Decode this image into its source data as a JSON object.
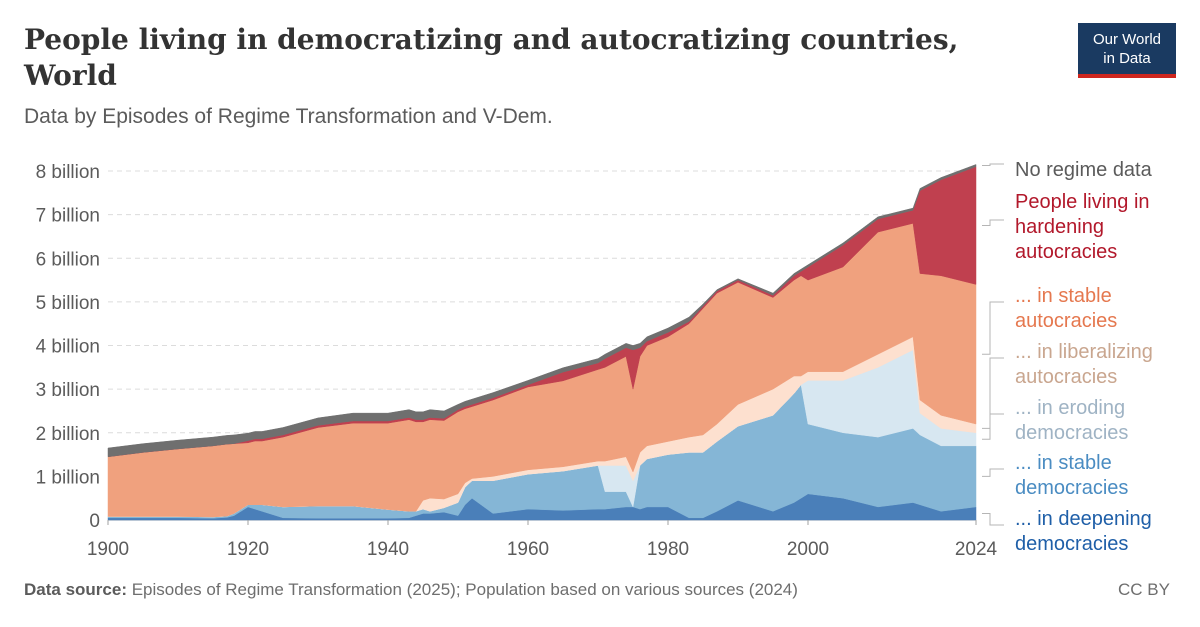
{
  "header": {
    "title": "People living in democratizing and autocratizing countries, World",
    "subtitle": "Data by Episodes of Regime Transformation and V-Dem.",
    "logo_line1": "Our World",
    "logo_line2": "in Data"
  },
  "footer": {
    "source_label": "Data source:",
    "source_text": "Episodes of Regime Transformation (2025); Population based on various sources (2024)",
    "license": "CC BY"
  },
  "colors": {
    "deepening_democracies": "#4a7fb9",
    "stable_democracies": "#85b6d6",
    "eroding_democracies": "#d7e7f1",
    "liberalizing_autocracies": "#fde0cf",
    "stable_autocracies": "#f0a17e",
    "hardening_autocracies": "#c0404f",
    "no_regime_data": "#6f6f6f"
  },
  "chart_data": {
    "type": "area",
    "stacked": true,
    "title": "People living in democratizing and autocratizing countries, World",
    "ylim": [
      0,
      8
    ],
    "yticks": [
      {
        "value": 0,
        "label": "0"
      },
      {
        "value": 1,
        "label": "1 billion"
      },
      {
        "value": 2,
        "label": "2 billion"
      },
      {
        "value": 3,
        "label": "3 billion"
      },
      {
        "value": 4,
        "label": "4 billion"
      },
      {
        "value": 5,
        "label": "5 billion"
      },
      {
        "value": 6,
        "label": "6 billion"
      },
      {
        "value": 7,
        "label": "7 billion"
      },
      {
        "value": 8,
        "label": "8 billion"
      }
    ],
    "xlim": [
      1900,
      2024
    ],
    "xticks": [
      1900,
      1920,
      1940,
      1960,
      1980,
      2000,
      2024
    ],
    "grid": true,
    "legend_position": "right",
    "x": [
      1900,
      1905,
      1910,
      1915,
      1917,
      1918,
      1920,
      1921,
      1922,
      1925,
      1930,
      1935,
      1940,
      1943,
      1944,
      1945,
      1946,
      1948,
      1950,
      1951,
      1952,
      1955,
      1960,
      1965,
      1970,
      1971,
      1974,
      1975,
      1976,
      1977,
      1980,
      1983,
      1985,
      1987,
      1990,
      1995,
      1998,
      1999,
      2000,
      2005,
      2010,
      2015,
      2016,
      2019,
      2024
    ],
    "series": [
      {
        "name": "... in deepening democracies",
        "key": "deepening_democracies",
        "values": [
          0.05,
          0.05,
          0.05,
          0.04,
          0.06,
          0.1,
          0.3,
          0.25,
          0.2,
          0.05,
          0.04,
          0.04,
          0.04,
          0.05,
          0.1,
          0.15,
          0.15,
          0.18,
          0.1,
          0.35,
          0.5,
          0.15,
          0.25,
          0.22,
          0.25,
          0.25,
          0.3,
          0.3,
          0.25,
          0.3,
          0.3,
          0.05,
          0.05,
          0.2,
          0.45,
          0.2,
          0.4,
          0.5,
          0.6,
          0.5,
          0.3,
          0.4,
          0.35,
          0.2,
          0.3
        ]
      },
      {
        "name": "... in stable democracies",
        "key": "stable_democracies",
        "values": [
          0.03,
          0.03,
          0.03,
          0.03,
          0.03,
          0.05,
          0.05,
          0.1,
          0.15,
          0.25,
          0.28,
          0.28,
          0.2,
          0.15,
          0.1,
          0.1,
          0.05,
          0.1,
          0.3,
          0.4,
          0.4,
          0.75,
          0.8,
          0.9,
          1.0,
          0.4,
          0.35,
          0.0,
          1.0,
          1.1,
          1.2,
          1.5,
          1.5,
          1.6,
          1.7,
          2.2,
          2.5,
          2.6,
          1.6,
          1.5,
          1.6,
          1.7,
          1.6,
          1.5,
          1.4
        ]
      },
      {
        "name": "... in eroding democracies",
        "key": "eroding_democracies",
        "values": [
          0,
          0,
          0,
          0,
          0,
          0,
          0,
          0,
          0,
          0,
          0,
          0,
          0,
          0,
          0,
          0,
          0,
          0,
          0,
          0,
          0,
          0,
          0,
          0,
          0,
          0.6,
          0.6,
          0.6,
          0,
          0,
          0,
          0,
          0,
          0,
          0,
          0,
          0,
          0,
          1.0,
          1.2,
          1.6,
          1.8,
          0.5,
          0.4,
          0.3
        ]
      },
      {
        "name": "... in liberalizing autocracies",
        "key": "liberalizing_autocracies",
        "values": [
          0,
          0,
          0,
          0,
          0,
          0,
          0,
          0,
          0,
          0,
          0,
          0,
          0,
          0,
          0,
          0.2,
          0.3,
          0.2,
          0.2,
          0.1,
          0.05,
          0.1,
          0.1,
          0.1,
          0.1,
          0.1,
          0.2,
          0.2,
          0.3,
          0.3,
          0.3,
          0.35,
          0.4,
          0.4,
          0.5,
          0.6,
          0.4,
          0.2,
          0.2,
          0.2,
          0.3,
          0.3,
          0.3,
          0.3,
          0.2
        ]
      },
      {
        "name": "... in stable autocracies",
        "key": "stable_autocracies",
        "values": [
          1.37,
          1.47,
          1.55,
          1.63,
          1.65,
          1.6,
          1.42,
          1.46,
          1.46,
          1.6,
          1.8,
          1.9,
          1.98,
          2.1,
          2.05,
          1.8,
          1.8,
          1.8,
          1.88,
          1.7,
          1.65,
          1.75,
          1.9,
          1.97,
          2.1,
          2.15,
          2.3,
          1.9,
          2.2,
          2.3,
          2.4,
          2.6,
          2.9,
          3.0,
          2.8,
          2.1,
          2.2,
          2.3,
          2.1,
          2.4,
          2.8,
          2.6,
          2.9,
          3.2,
          3.2
        ]
      },
      {
        "name": "People living in hardening autocracies",
        "key": "hardening_autocracies",
        "values": [
          0,
          0,
          0,
          0,
          0,
          0,
          0.05,
          0.05,
          0.05,
          0.05,
          0.05,
          0.05,
          0.05,
          0.05,
          0.05,
          0.05,
          0.05,
          0.05,
          0.05,
          0.05,
          0.05,
          0.05,
          0.05,
          0.2,
          0.15,
          0.2,
          0.2,
          0.9,
          0.2,
          0.1,
          0.1,
          0.05,
          0.05,
          0.05,
          0.05,
          0.05,
          0.1,
          0.1,
          0.3,
          0.5,
          0.3,
          0.3,
          1.9,
          2.2,
          2.7
        ]
      },
      {
        "name": "No regime data",
        "key": "no_regime_data",
        "values": [
          0.2,
          0.2,
          0.2,
          0.2,
          0.2,
          0.2,
          0.17,
          0.17,
          0.17,
          0.17,
          0.17,
          0.18,
          0.18,
          0.18,
          0.18,
          0.18,
          0.18,
          0.17,
          0.12,
          0.12,
          0.12,
          0.12,
          0.1,
          0.1,
          0.1,
          0.1,
          0.1,
          0.1,
          0.1,
          0.1,
          0.1,
          0.1,
          0.05,
          0.03,
          0.03,
          0.05,
          0.05,
          0.05,
          0.05,
          0.05,
          0.05,
          0.05,
          0.05,
          0.05,
          0.05
        ]
      }
    ],
    "labels": [
      {
        "key": "no_regime_data",
        "lines": [
          "No regime data"
        ]
      },
      {
        "key": "hardening_autocracies",
        "lines": [
          "People living in",
          "hardening",
          "autocracies"
        ]
      },
      {
        "key": "stable_autocracies",
        "lines": [
          "... in stable",
          "autocracies"
        ]
      },
      {
        "key": "liberalizing_autocracies",
        "lines": [
          "... in liberalizing",
          "autocracies"
        ]
      },
      {
        "key": "eroding_democracies",
        "lines": [
          "... in eroding",
          "democracies"
        ]
      },
      {
        "key": "stable_democracies",
        "lines": [
          "... in stable",
          "democracies"
        ]
      },
      {
        "key": "deepening_democracies",
        "lines": [
          "... in deepening",
          "democracies"
        ]
      }
    ]
  }
}
